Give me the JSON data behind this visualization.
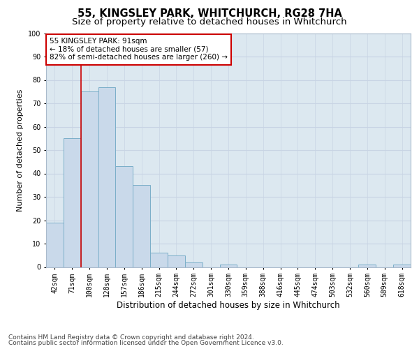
{
  "title": "55, KINGSLEY PARK, WHITCHURCH, RG28 7HA",
  "subtitle": "Size of property relative to detached houses in Whitchurch",
  "xlabel": "Distribution of detached houses by size in Whitchurch",
  "ylabel": "Number of detached properties",
  "categories": [
    "42sqm",
    "71sqm",
    "100sqm",
    "128sqm",
    "157sqm",
    "186sqm",
    "215sqm",
    "244sqm",
    "272sqm",
    "301sqm",
    "330sqm",
    "359sqm",
    "388sqm",
    "416sqm",
    "445sqm",
    "474sqm",
    "503sqm",
    "532sqm",
    "560sqm",
    "589sqm",
    "618sqm"
  ],
  "values": [
    19,
    55,
    75,
    77,
    43,
    35,
    6,
    5,
    2,
    0,
    1,
    0,
    0,
    0,
    0,
    0,
    0,
    0,
    1,
    0,
    1
  ],
  "bar_color": "#c9d9ea",
  "bar_edge_color": "#7aaec8",
  "vline_color": "#cc0000",
  "annotation_text": "55 KINGSLEY PARK: 91sqm\n← 18% of detached houses are smaller (57)\n82% of semi-detached houses are larger (260) →",
  "annotation_box_facecolor": "#ffffff",
  "annotation_box_edgecolor": "#cc0000",
  "ylim": [
    0,
    100
  ],
  "yticks": [
    0,
    10,
    20,
    30,
    40,
    50,
    60,
    70,
    80,
    90,
    100
  ],
  "grid_color": "#c8d4e4",
  "plot_bg_color": "#dce8f0",
  "fig_bg_color": "#ffffff",
  "footer_line1": "Contains HM Land Registry data © Crown copyright and database right 2024.",
  "footer_line2": "Contains public sector information licensed under the Open Government Licence v3.0.",
  "title_fontsize": 10.5,
  "subtitle_fontsize": 9.5,
  "xlabel_fontsize": 8.5,
  "ylabel_fontsize": 8,
  "tick_fontsize": 7,
  "annot_fontsize": 7.5,
  "footer_fontsize": 6.5
}
